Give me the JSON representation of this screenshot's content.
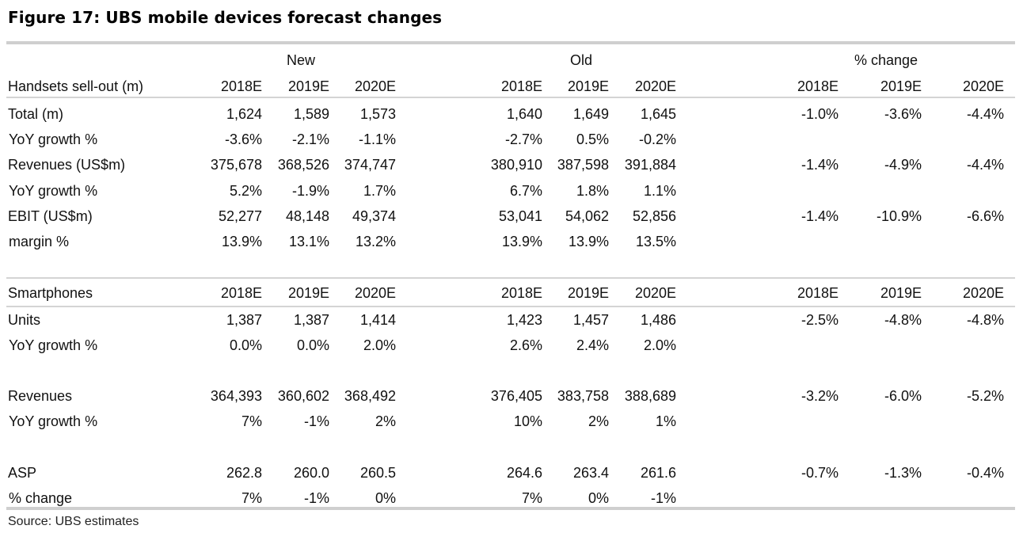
{
  "title": "Figure 17: UBS mobile devices forecast changes",
  "groups": {
    "new": "New",
    "old": "Old",
    "pct": "% change"
  },
  "handsets": {
    "header": {
      "label": "Handsets sell-out (m)",
      "new": [
        "2018E",
        "2019E",
        "2020E"
      ],
      "old": [
        "2018E",
        "2019E",
        "2020E"
      ],
      "pct": [
        "2018E",
        "2019E",
        "2020E"
      ]
    },
    "rows": [
      {
        "label": "Total (m)",
        "new": [
          "1,624",
          "1,589",
          "1,573"
        ],
        "old": [
          "1,640",
          "1,649",
          "1,645"
        ],
        "pct": [
          "-1.0%",
          "-3.6%",
          "-4.4%"
        ]
      },
      {
        "label": "YoY growth %",
        "new": [
          "-3.6%",
          "-2.1%",
          "-1.1%"
        ],
        "old": [
          "-2.7%",
          "0.5%",
          "-0.2%"
        ],
        "pct": [
          "",
          "",
          ""
        ]
      },
      {
        "label": "Revenues (US$m)",
        "new": [
          "375,678",
          "368,526",
          "374,747"
        ],
        "old": [
          "380,910",
          "387,598",
          "391,884"
        ],
        "pct": [
          "-1.4%",
          "-4.9%",
          "-4.4%"
        ]
      },
      {
        "label": "YoY growth %",
        "new": [
          "5.2%",
          "-1.9%",
          "1.7%"
        ],
        "old": [
          "6.7%",
          "1.8%",
          "1.1%"
        ],
        "pct": [
          "",
          "",
          ""
        ]
      },
      {
        "label": "EBIT (US$m)",
        "new": [
          "52,277",
          "48,148",
          "49,374"
        ],
        "old": [
          "53,041",
          "54,062",
          "52,856"
        ],
        "pct": [
          "-1.4%",
          "-10.9%",
          "-6.6%"
        ]
      },
      {
        "label": "margin %",
        "new": [
          "13.9%",
          "13.1%",
          "13.2%"
        ],
        "old": [
          "13.9%",
          "13.9%",
          "13.5%"
        ],
        "pct": [
          "",
          "",
          ""
        ]
      }
    ]
  },
  "smartphones": {
    "header": {
      "label": "Smartphones",
      "new": [
        "2018E",
        "2019E",
        "2020E"
      ],
      "old": [
        "2018E",
        "2019E",
        "2020E"
      ],
      "pct": [
        "2018E",
        "2019E",
        "2020E"
      ]
    },
    "rows": [
      {
        "label": "Units",
        "new": [
          "1,387",
          "1,387",
          "1,414"
        ],
        "old": [
          "1,423",
          "1,457",
          "1,486"
        ],
        "pct": [
          "-2.5%",
          "-4.8%",
          "-4.8%"
        ]
      },
      {
        "label": "YoY growth %",
        "new": [
          "0.0%",
          "0.0%",
          "2.0%"
        ],
        "old": [
          "2.6%",
          "2.4%",
          "2.0%"
        ],
        "pct": [
          "",
          "",
          ""
        ]
      },
      {
        "label": "Revenues",
        "new": [
          "364,393",
          "360,602",
          "368,492"
        ],
        "old": [
          "376,405",
          "383,758",
          "388,689"
        ],
        "pct": [
          "-3.2%",
          "-6.0%",
          "-5.2%"
        ]
      },
      {
        "label": "YoY growth %",
        "new": [
          "7%",
          "-1%",
          "2%"
        ],
        "old": [
          "10%",
          "2%",
          "1%"
        ],
        "pct": [
          "",
          "",
          ""
        ]
      },
      {
        "label": "ASP",
        "new": [
          "262.8",
          "260.0",
          "260.5"
        ],
        "old": [
          "264.6",
          "263.4",
          "261.6"
        ],
        "pct": [
          "-0.7%",
          "-1.3%",
          "-0.4%"
        ]
      },
      {
        "label": "% change",
        "new": [
          "7%",
          "-1%",
          "0%"
        ],
        "old": [
          "7%",
          "0%",
          "-1%"
        ],
        "pct": [
          "",
          "",
          ""
        ]
      }
    ]
  },
  "source": "Source:  UBS estimates"
}
